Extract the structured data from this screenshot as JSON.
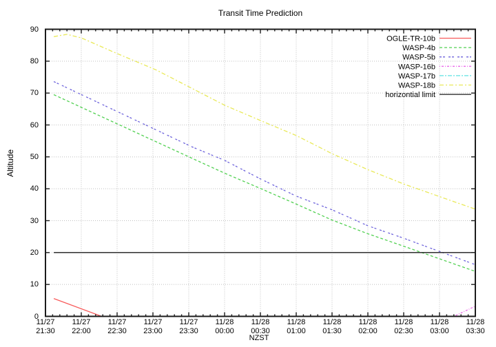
{
  "title": "Transit Time Prediction",
  "axes": {
    "ylabel": "Altitude",
    "xlabel": "NZST",
    "y_ticks": [
      0,
      10,
      20,
      30,
      40,
      50,
      60,
      70,
      80,
      90
    ],
    "x_ticks": [
      {
        "date": "11/27",
        "time": "21:30"
      },
      {
        "date": "11/27",
        "time": "22:00"
      },
      {
        "date": "11/27",
        "time": "22:30"
      },
      {
        "date": "11/27",
        "time": "23:00"
      },
      {
        "date": "11/27",
        "time": "23:30"
      },
      {
        "date": "11/28",
        "time": "00:00"
      },
      {
        "date": "11/28",
        "time": "00:30"
      },
      {
        "date": "11/28",
        "time": "01:00"
      },
      {
        "date": "11/28",
        "time": "01:30"
      },
      {
        "date": "11/28",
        "time": "02:00"
      },
      {
        "date": "11/28",
        "time": "02:30"
      },
      {
        "date": "11/28",
        "time": "03:00"
      },
      {
        "date": "11/28",
        "time": "03:30"
      }
    ]
  },
  "colors": {
    "axis": "#1a1a1a",
    "grid": "#bfbfbf",
    "background": "#ffffff"
  },
  "chart_data": {
    "type": "line",
    "title": "Transit Time Prediction",
    "xlabel": "NZST",
    "ylabel": "Altitude",
    "ylim": [
      0,
      90
    ],
    "x_range": [
      "11/27 21:30",
      "11/28 03:30"
    ],
    "x_major_step_minutes": 30,
    "x_minor_step_minutes": 6,
    "grid": true,
    "legend_position": "top-right-inside",
    "series": [
      {
        "name": "OGLE-TR-10b",
        "color": "#f85a5a",
        "dash": "solid",
        "points": [
          [
            "11/27 21:37",
            5.6
          ],
          [
            "11/27 22:17",
            0.0
          ]
        ]
      },
      {
        "name": "WASP-4b",
        "color": "#50d050",
        "dash": "4,3",
        "points": [
          [
            "11/27 21:37",
            69.5
          ],
          [
            "11/27 23:33",
            49.5
          ],
          [
            "11/28 00:00",
            44.9
          ],
          [
            "11/28 00:30",
            40.1
          ],
          [
            "11/28 01:00",
            35.2
          ],
          [
            "11/28 01:30",
            30.2
          ],
          [
            "11/28 02:00",
            25.9
          ],
          [
            "11/28 02:30",
            22.0
          ],
          [
            "11/28 03:30",
            14.1
          ]
        ]
      },
      {
        "name": "WASP-5b",
        "color": "#6e64dc",
        "dash": "3,2,3,5",
        "points": [
          [
            "11/27 21:37",
            73.6
          ],
          [
            "11/27 23:33",
            53.1
          ],
          [
            "11/28 00:00",
            48.9
          ],
          [
            "11/28 00:30",
            43.1
          ],
          [
            "11/28 01:00",
            37.7
          ],
          [
            "11/28 01:30",
            33.4
          ],
          [
            "11/28 02:00",
            28.4
          ],
          [
            "11/28 02:30",
            24.5
          ],
          [
            "11/28 03:30",
            16.2
          ]
        ]
      },
      {
        "name": "WASP-16b",
        "color": "#ea6aea",
        "dash": "1,2,3,2",
        "points": [
          [
            "11/28 03:12",
            0.0
          ],
          [
            "11/28 03:30",
            3.2
          ]
        ]
      },
      {
        "name": "WASP-17b",
        "color": "#5ce2e2",
        "dash": "6,2,2,2",
        "points": []
      },
      {
        "name": "WASP-18b",
        "color": "#e9e958",
        "dash": "6,3,2,3",
        "points": [
          [
            "11/27 21:37",
            87.7
          ],
          [
            "11/27 21:48",
            88.4
          ],
          [
            "11/27 22:00",
            87.3
          ],
          [
            "11/27 22:28",
            82.7
          ],
          [
            "11/27 23:03",
            77.2
          ],
          [
            "11/28 00:00",
            66.2
          ],
          [
            "11/28 00:30",
            61.4
          ],
          [
            "11/28 01:00",
            56.7
          ],
          [
            "11/28 01:30",
            51.0
          ],
          [
            "11/28 02:00",
            46.0
          ],
          [
            "11/28 02:30",
            41.5
          ],
          [
            "11/28 03:30",
            33.6
          ]
        ]
      },
      {
        "name": "horizontial limit",
        "color": "#1a1a1a",
        "dash": "solid",
        "points": [
          [
            "11/27 21:37",
            20.0
          ],
          [
            "11/28 03:30",
            20.0
          ]
        ]
      }
    ]
  }
}
